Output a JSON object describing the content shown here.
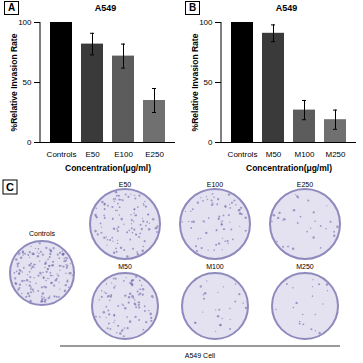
{
  "chart_data": [
    {
      "type": "bar",
      "title": "A549",
      "annotations": [
        "A"
      ],
      "categories": [
        "Controls",
        "E50",
        "E100",
        "E250"
      ],
      "values": [
        100,
        82,
        72,
        35
      ],
      "errors": [
        0,
        9,
        10,
        10
      ],
      "colors": [
        "#000000",
        "#3a3a3a",
        "#5c5c5c",
        "#707070"
      ],
      "x_label": "Concentration(μg/ml)",
      "y_label": "%Relative Invasion Rate",
      "ylim": [
        0,
        100
      ],
      "yticks": [
        0,
        50,
        100
      ]
    },
    {
      "type": "bar",
      "title": "A549",
      "annotations": [
        "B"
      ],
      "categories": [
        "Controls",
        "M50",
        "M100",
        "M250"
      ],
      "values": [
        100,
        91,
        27,
        19
      ],
      "errors": [
        0,
        7,
        8,
        8
      ],
      "colors": [
        "#000000",
        "#3a3a3a",
        "#5c5c5c",
        "#707070"
      ],
      "x_label": "Concentration(μg/ml)",
      "y_label": "%Relative Invasion Rate",
      "ylim": [
        0,
        100
      ],
      "yticks": [
        0,
        50,
        100
      ]
    }
  ],
  "panel_c": {
    "label": "C",
    "controls": "Controls",
    "top_row": [
      "E50",
      "E100",
      "E250"
    ],
    "bottom_row": [
      "M50",
      "M100",
      "M250"
    ],
    "caption": "A549 Cell"
  }
}
